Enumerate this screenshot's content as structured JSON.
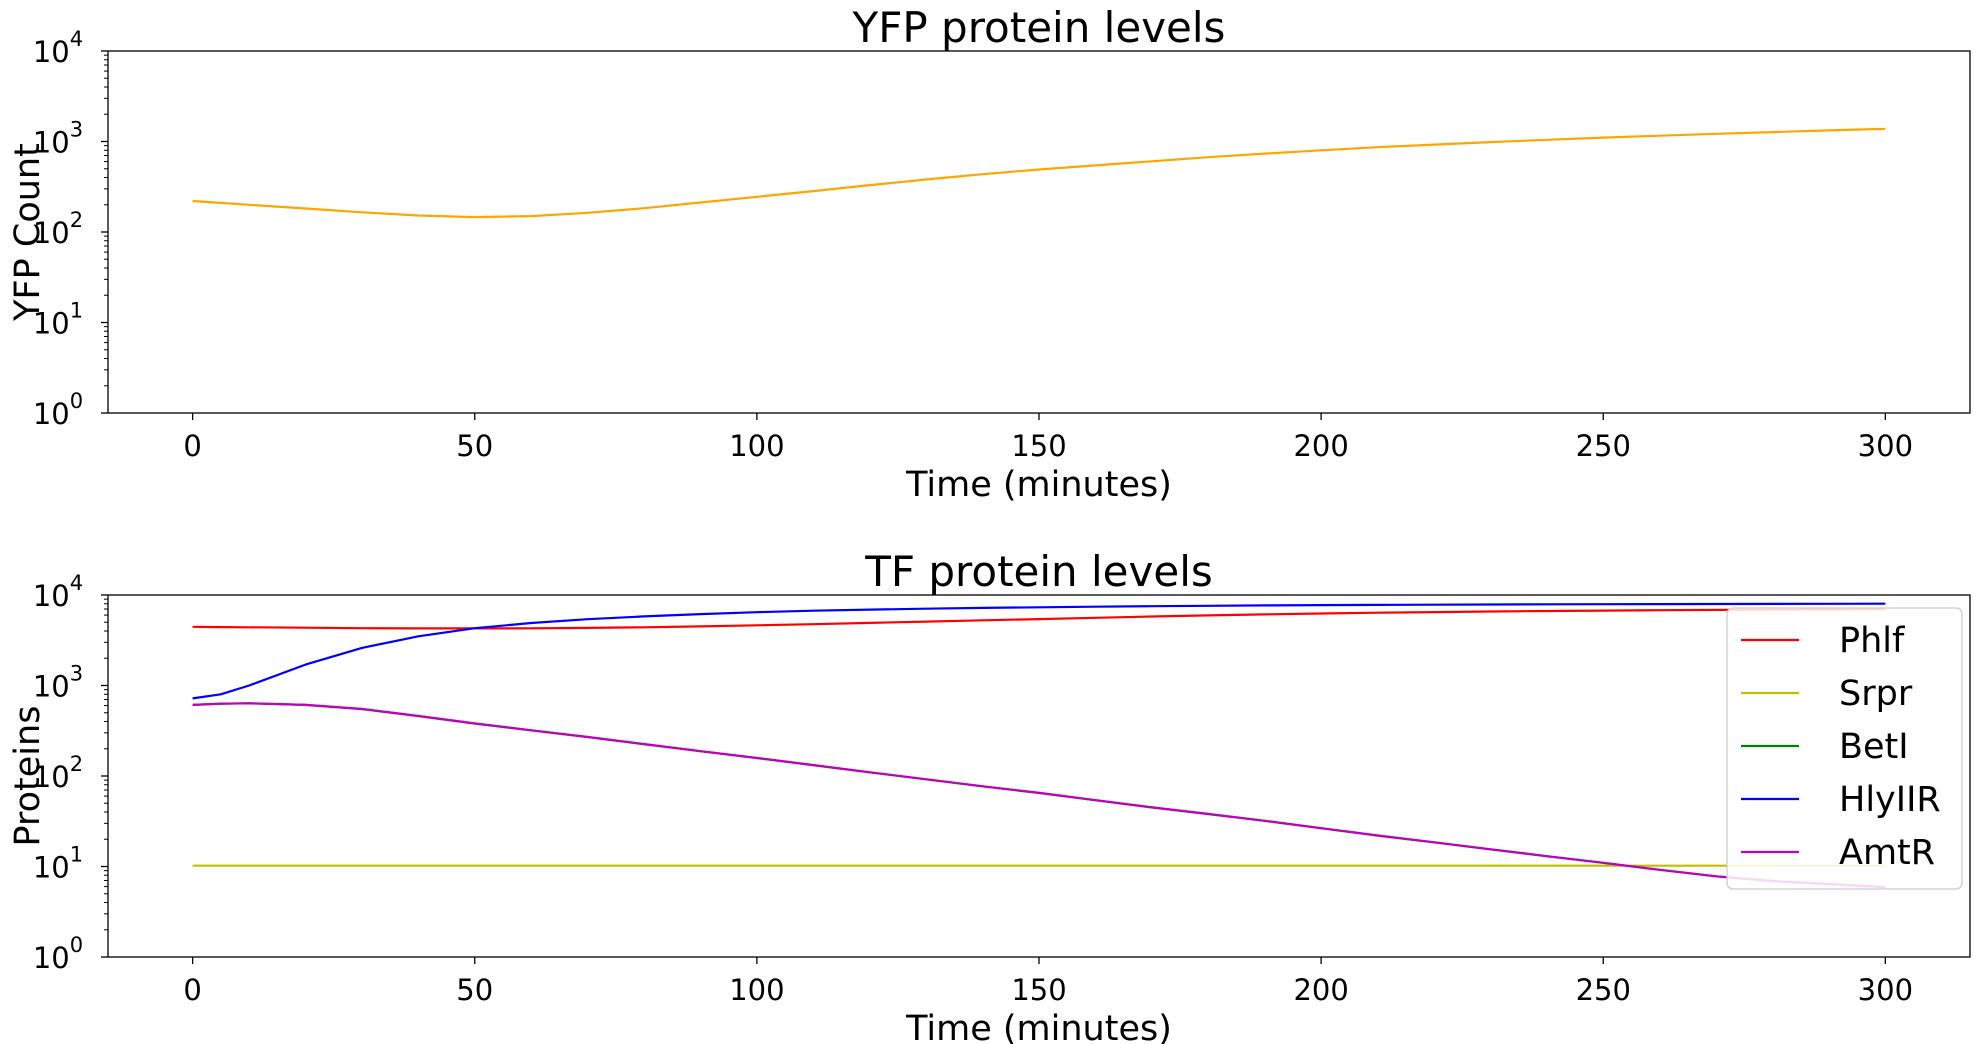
{
  "chart_data": [
    {
      "type": "line",
      "title": "YFP protein levels",
      "xlabel": "Time (minutes)",
      "ylabel": "YFP Count",
      "yscale": "log",
      "xlim": [
        -15,
        315
      ],
      "ylim": [
        1,
        10000
      ],
      "xticks": [
        "0",
        "50",
        "100",
        "150",
        "200",
        "250",
        "300"
      ],
      "yticks": [
        {
          "base": "10",
          "exp": "0"
        },
        {
          "base": "10",
          "exp": "1"
        },
        {
          "base": "10",
          "exp": "2"
        },
        {
          "base": "10",
          "exp": "3"
        },
        {
          "base": "10",
          "exp": "4"
        }
      ],
      "grid": false,
      "legend": null,
      "x": [
        0,
        10,
        20,
        30,
        40,
        50,
        60,
        70,
        80,
        90,
        100,
        110,
        120,
        130,
        140,
        150,
        160,
        170,
        180,
        190,
        200,
        210,
        220,
        230,
        240,
        250,
        260,
        270,
        280,
        290,
        300
      ],
      "series": [
        {
          "color": "#ffa500",
          "values": [
            220,
            200,
            182,
            165,
            152,
            146,
            150,
            163,
            183,
            212,
            245,
            283,
            330,
            380,
            435,
            490,
            545,
            605,
            670,
            735,
            800,
            865,
            925,
            985,
            1045,
            1105,
            1160,
            1215,
            1270,
            1325,
            1380
          ]
        }
      ]
    },
    {
      "type": "line",
      "title": "TF protein levels",
      "xlabel": "Time (minutes)",
      "ylabel": "Proteins",
      "yscale": "log",
      "xlim": [
        -15,
        315
      ],
      "ylim": [
        1,
        10000
      ],
      "xticks": [
        "0",
        "50",
        "100",
        "150",
        "200",
        "250",
        "300"
      ],
      "yticks": [
        {
          "base": "10",
          "exp": "0"
        },
        {
          "base": "10",
          "exp": "1"
        },
        {
          "base": "10",
          "exp": "2"
        },
        {
          "base": "10",
          "exp": "3"
        },
        {
          "base": "10",
          "exp": "4"
        }
      ],
      "grid": false,
      "legend": "right",
      "x": [
        0,
        5,
        10,
        20,
        30,
        40,
        50,
        60,
        70,
        80,
        90,
        100,
        110,
        120,
        130,
        140,
        150,
        160,
        170,
        180,
        190,
        200,
        210,
        220,
        230,
        240,
        250,
        260,
        270,
        280,
        290,
        300
      ],
      "series": [
        {
          "name": "Phlf",
          "color": "#ff0000",
          "values": [
            4450,
            4420,
            4400,
            4350,
            4300,
            4270,
            4270,
            4290,
            4330,
            4400,
            4500,
            4620,
            4760,
            4920,
            5080,
            5250,
            5420,
            5600,
            5780,
            5950,
            6100,
            6240,
            6370,
            6480,
            6580,
            6660,
            6730,
            6790,
            6840,
            6880,
            6920,
            6960
          ]
        },
        {
          "name": "Srpr",
          "color": "#bfbf00",
          "values": [
            10.2,
            10.2,
            10.2,
            10.2,
            10.2,
            10.2,
            10.2,
            10.2,
            10.2,
            10.2,
            10.2,
            10.2,
            10.2,
            10.2,
            10.2,
            10.2,
            10.2,
            10.2,
            10.2,
            10.2,
            10.2,
            10.2,
            10.2,
            10.2,
            10.2,
            10.2,
            10.2,
            10.2,
            10.2,
            10.2,
            10.2,
            10.2
          ]
        },
        {
          "name": "BetI",
          "color": "#008000",
          "values": [
            610,
            630,
            635,
            610,
            550,
            460,
            380,
            320,
            270,
            225,
            188,
            158,
            132,
            110,
            92,
            77,
            65,
            54,
            45,
            38,
            32,
            26.5,
            22,
            18.5,
            15.5,
            13,
            11,
            9.2,
            7.8,
            6.9,
            6.4,
            5.9
          ]
        },
        {
          "name": "HlyIIR",
          "color": "#0000ff",
          "values": [
            720,
            800,
            1000,
            1700,
            2600,
            3500,
            4300,
            4900,
            5400,
            5800,
            6150,
            6450,
            6700,
            6900,
            7050,
            7200,
            7320,
            7430,
            7520,
            7600,
            7670,
            7730,
            7780,
            7820,
            7860,
            7890,
            7920,
            7940,
            7960,
            7980,
            8000,
            8020
          ]
        },
        {
          "name": "AmtR",
          "color": "#bf00bf",
          "values": [
            610,
            630,
            635,
            610,
            550,
            460,
            380,
            320,
            270,
            225,
            188,
            158,
            132,
            110,
            92,
            77,
            65,
            54,
            45,
            38,
            32,
            26.5,
            22,
            18.5,
            15.5,
            13,
            11,
            9.2,
            7.8,
            6.9,
            6.4,
            5.9
          ]
        }
      ]
    }
  ]
}
